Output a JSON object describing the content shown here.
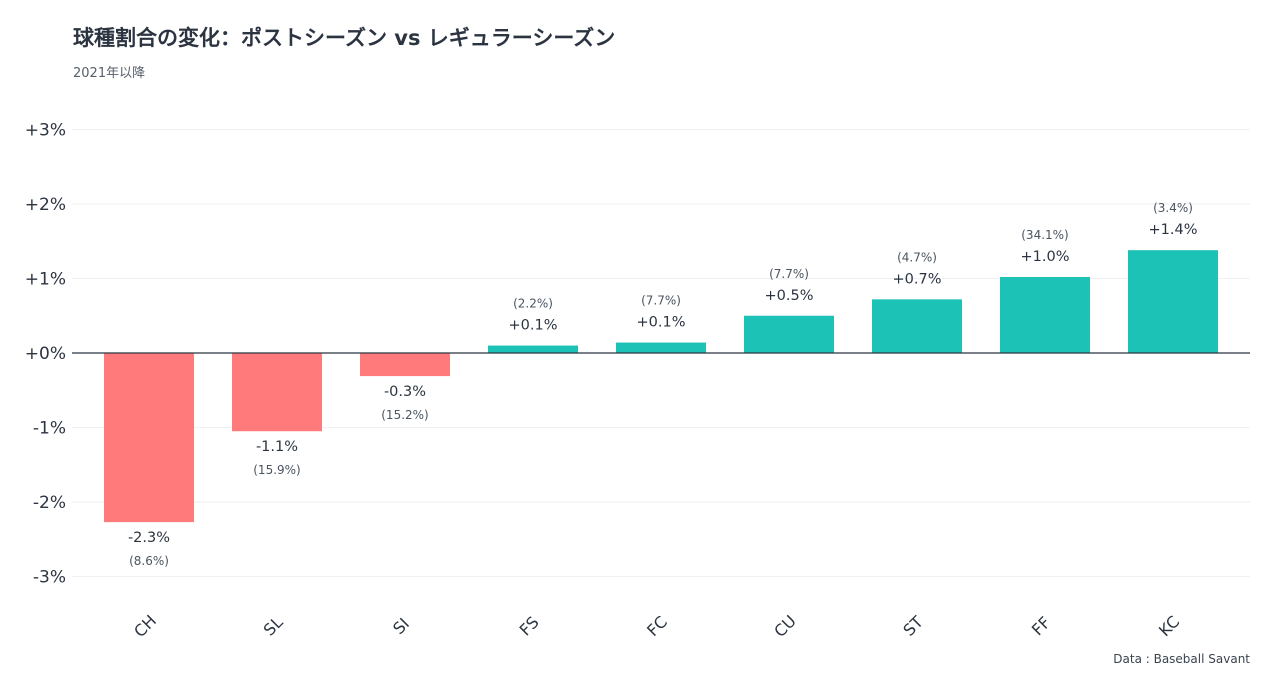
{
  "header": {
    "title": "球種割合の変化：ポストシーズン vs レギュラーシーズン",
    "subtitle": "2021年以降"
  },
  "footer": {
    "source": "Data : Baseball Savant"
  },
  "colors": {
    "negative": "#ff7b7b",
    "positive": "#1cc2b6",
    "zero_line": "#2b3440",
    "grid": "#eef0f2",
    "text": "#2b3440",
    "subtext": "#4a5560"
  },
  "chart_data": {
    "type": "bar",
    "categories": [
      "CH",
      "SL",
      "SI",
      "FS",
      "FC",
      "CU",
      "ST",
      "FF",
      "KC"
    ],
    "values": [
      -2.27,
      -1.05,
      -0.31,
      0.1,
      0.14,
      0.5,
      0.72,
      1.02,
      1.38
    ],
    "value_labels": [
      "-2.3%",
      "-1.1%",
      "-0.3%",
      "+0.1%",
      "+0.1%",
      "+0.5%",
      "+0.7%",
      "+1.0%",
      "+1.4%"
    ],
    "share_labels": [
      "(8.6%)",
      "(15.9%)",
      "(15.2%)",
      "(2.2%)",
      "(7.7%)",
      "(7.7%)",
      "(4.7%)",
      "(34.1%)",
      "(3.4%)"
    ],
    "y_ticks": [
      3,
      2,
      1,
      0,
      -1,
      -2,
      -3
    ],
    "y_tick_labels": [
      "+3%",
      "+2%",
      "+1%",
      "+0%",
      "-1%",
      "-2%",
      "-3%"
    ],
    "ylim": [
      -3,
      3
    ],
    "xlabel": "",
    "ylabel": "",
    "grid": true,
    "legend": "none"
  }
}
